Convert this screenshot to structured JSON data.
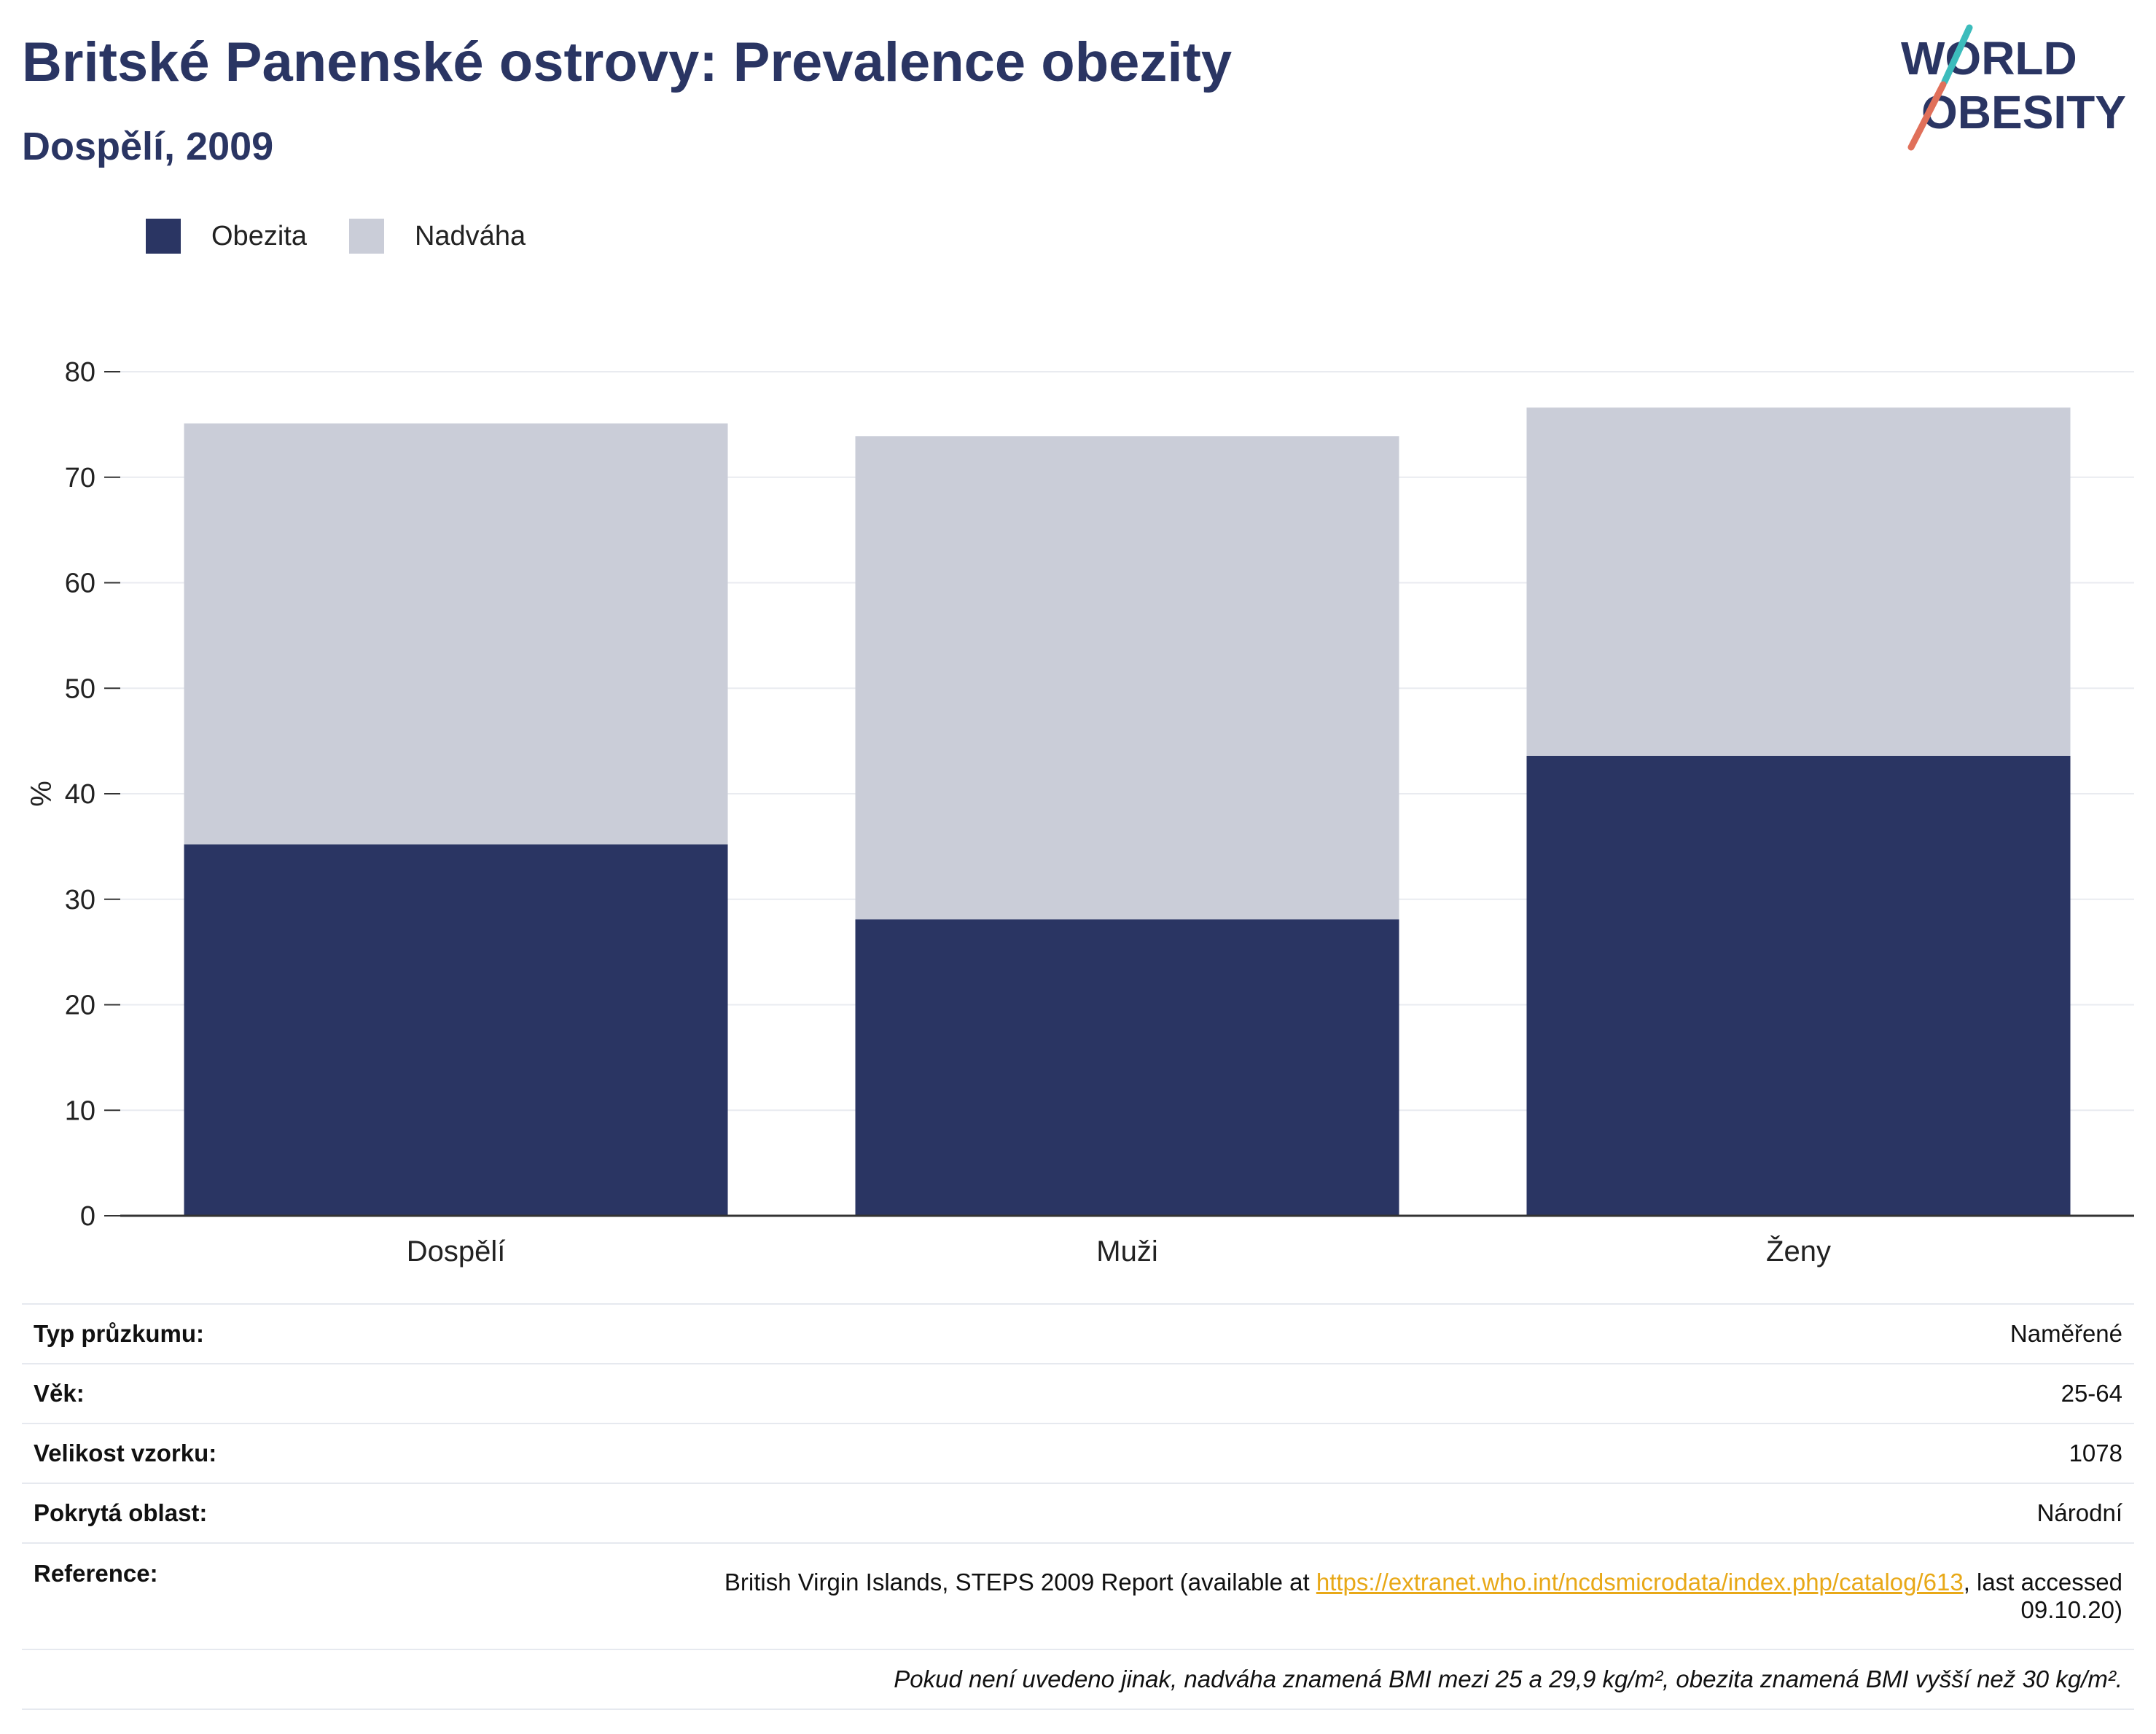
{
  "header": {
    "title": "Britské Panenské ostrovy: Prevalence obezity",
    "subtitle": "Dospělí, 2009"
  },
  "logo": {
    "line1": "WORLD",
    "line2": "OBESITY",
    "colors": {
      "text": "#2a3563",
      "teal": "#3cbcbc",
      "coral": "#e0705a"
    }
  },
  "legend": [
    {
      "label": "Obezita",
      "color": "#2a3563"
    },
    {
      "label": "Nadváha",
      "color": "#cacdd8"
    }
  ],
  "chart_data": {
    "type": "bar",
    "stacked": true,
    "categories": [
      "Dospělí",
      "Muži",
      "Ženy"
    ],
    "series": [
      {
        "name": "Obezita",
        "color": "#2a3563",
        "values": [
          35.2,
          28.1,
          43.6
        ]
      },
      {
        "name": "Nadváha",
        "color": "#cacdd8",
        "values": [
          39.9,
          45.8,
          33.0
        ]
      }
    ],
    "ylabel": "%",
    "xlabel": "",
    "ylim": [
      0,
      80
    ],
    "yticks": [
      0,
      10,
      20,
      30,
      40,
      50,
      60,
      70,
      80
    ],
    "grid": true,
    "legend_position": "top-left"
  },
  "info_table": {
    "rows": [
      {
        "key": "Typ průzkumu:",
        "value": "Naměřené"
      },
      {
        "key": "Věk:",
        "value": "25-64"
      },
      {
        "key": "Velikost vzorku:",
        "value": "1078"
      },
      {
        "key": "Pokrytá oblast:",
        "value": "Národní"
      }
    ],
    "reference": {
      "key": "Reference:",
      "prefix": "British Virgin Islands, STEPS 2009 Report (available at ",
      "link": "https://extranet.who.int/ncdsmicrodata/index.php/catalog/613",
      "suffix": ", last accessed",
      "suffix2": "09.10.20)"
    },
    "note": "Pokud není uvedeno jinak, nadváha znamená BMI mezi 25 a 29,9 kg/m², obezita znamená BMI vyšší než 30 kg/m²."
  }
}
